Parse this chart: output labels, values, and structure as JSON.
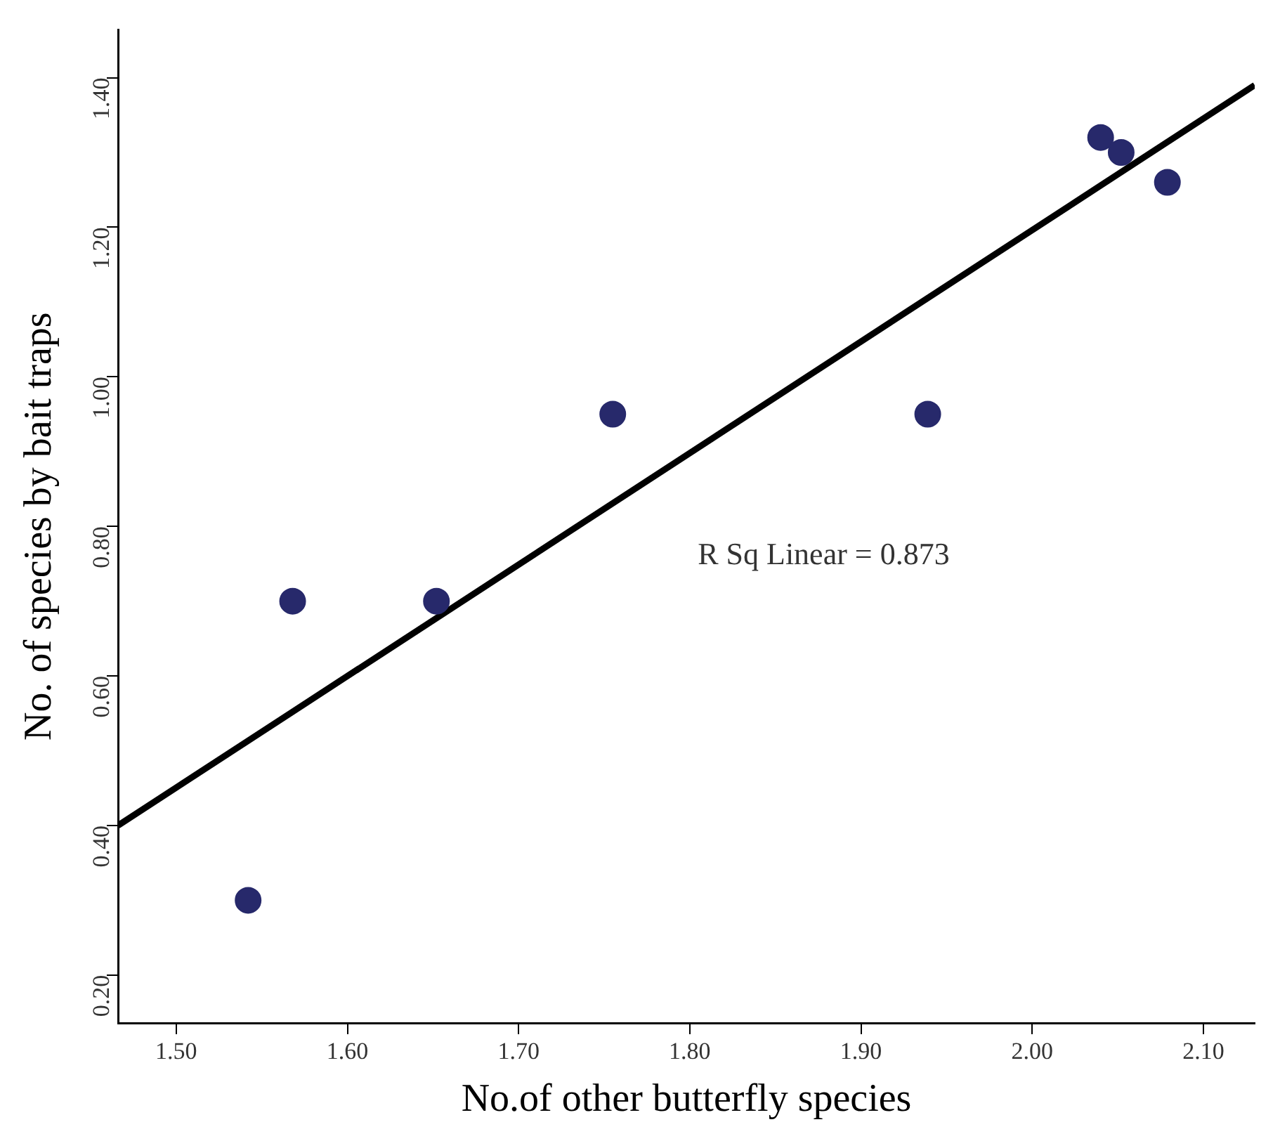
{
  "chart_data": {
    "type": "scatter",
    "xlabel": "No.of other butterfly species",
    "ylabel": "No. of species by bait traps",
    "annotations": [
      "R Sq Linear = 0.873"
    ],
    "series": [
      {
        "type": "scatter",
        "color": "#27296b",
        "x": [
          1.542,
          1.568,
          1.652,
          1.755,
          1.939,
          2.04,
          2.052,
          2.079
        ],
        "values": [
          0.3,
          0.7,
          0.7,
          0.95,
          0.95,
          1.32,
          1.3,
          1.26
        ],
        "marker": "circle"
      },
      {
        "type": "line",
        "color": "#000000",
        "x": [
          1.466,
          2.13
        ],
        "values": [
          0.4,
          1.39
        ],
        "marker": "none",
        "line_style": "solid"
      }
    ],
    "xlim": [
      1.466,
      2.13
    ],
    "xticks": [
      {
        "value": 1.5,
        "label": "1.50"
      },
      {
        "value": 1.6,
        "label": "1.60"
      },
      {
        "value": 1.7,
        "label": "1.70"
      },
      {
        "value": 1.8,
        "label": "1.80"
      },
      {
        "value": 1.9,
        "label": "1.90"
      },
      {
        "value": 2.0,
        "label": "2.00"
      },
      {
        "value": 2.1,
        "label": "2.10"
      }
    ],
    "ylim": [
      0.136,
      1.464
    ],
    "yticks": [
      {
        "value": 0.2,
        "label": "0.20"
      },
      {
        "value": 0.4,
        "label": "0.40"
      },
      {
        "value": 0.6,
        "label": "0.60"
      },
      {
        "value": 0.8,
        "label": "0.80"
      },
      {
        "value": 1.0,
        "label": "1.00"
      },
      {
        "value": 1.2,
        "label": "1.20"
      },
      {
        "value": 1.4,
        "label": "1.40"
      }
    ],
    "grid": false,
    "legend": false
  }
}
